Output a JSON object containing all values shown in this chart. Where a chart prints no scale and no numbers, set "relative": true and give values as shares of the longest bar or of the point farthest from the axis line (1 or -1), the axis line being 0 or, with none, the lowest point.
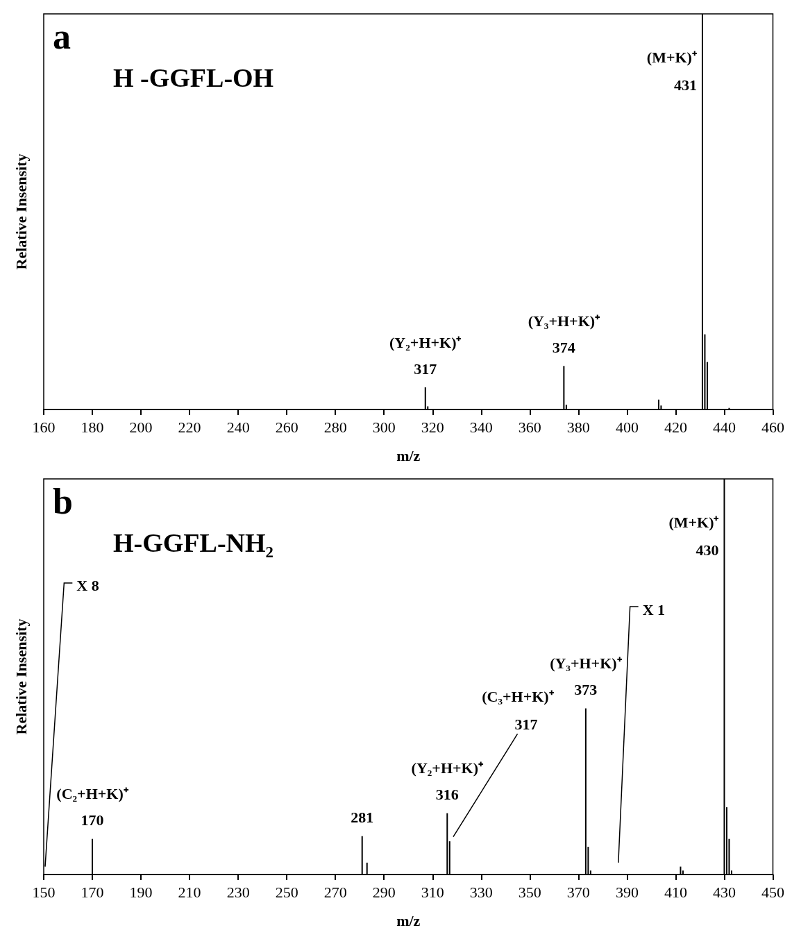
{
  "chart_data": [
    {
      "type": "bar",
      "title": "H -GGFL-OH",
      "xlabel": "m/z",
      "ylabel": "Relative Insensity",
      "relative": true,
      "tick_labels": "x",
      "grid": false,
      "color": "#000000",
      "xlim": [
        160,
        460
      ],
      "xticks": [
        160,
        180,
        200,
        220,
        240,
        260,
        280,
        300,
        320,
        340,
        360,
        380,
        400,
        420,
        440,
        460
      ],
      "x": [
        317,
        318,
        374,
        375,
        413,
        414,
        431,
        432,
        433,
        442
      ],
      "values": [
        0.056,
        0.008,
        0.11,
        0.012,
        0.025,
        0.01,
        1,
        0.19,
        0.12,
        0.004
      ],
      "annotations": [
        "a",
        {
          "text": "(M+K)⁺",
          "x": 431,
          "y": 0.89
        },
        {
          "text": "431",
          "x": 431,
          "y": 0.82
        },
        {
          "text": "(Y₂+H+K)⁺",
          "x": 317,
          "y": 0.056
        },
        {
          "text": "317",
          "x": 317,
          "y": 0.056
        },
        {
          "text": "(Y₃+H+K)⁺",
          "x": 374,
          "y": 0.11
        },
        {
          "text": "374",
          "x": 374,
          "y": 0.11
        }
      ]
    },
    {
      "type": "bar",
      "title": "H-GGFL-NH₂",
      "xlabel": "m/z",
      "ylabel": "Relative Insensity",
      "relative": true,
      "tick_labels": "x",
      "grid": false,
      "color": "#000000",
      "xlim": [
        150,
        450
      ],
      "xticks": [
        150,
        170,
        190,
        210,
        230,
        250,
        270,
        290,
        310,
        330,
        350,
        370,
        390,
        410,
        430,
        450
      ],
      "x": [
        170,
        281,
        283,
        316,
        317,
        373,
        374,
        375,
        412,
        413,
        430,
        431,
        432,
        433
      ],
      "values": [
        0.09,
        0.097,
        0.03,
        0.155,
        0.084,
        0.42,
        0.07,
        0.01,
        0.02,
        0.01,
        1,
        0.17,
        0.09,
        0.01
      ],
      "annotations": [
        "b",
        "X 8",
        "X 1",
        "(C₃+H+K)⁺",
        "317",
        {
          "text": "(M+K)⁺",
          "x": 430,
          "y": 0.89
        },
        {
          "text": "430",
          "x": 430,
          "y": 0.82
        },
        {
          "text": "(Y₃+H+K)⁺",
          "x": 373,
          "y": 0.42
        },
        {
          "text": "373",
          "x": 373,
          "y": 0.42
        },
        {
          "text": "(Y₂+H+K)⁺",
          "x": 316,
          "y": 0.155
        },
        {
          "text": "316",
          "x": 316,
          "y": 0.155
        },
        {
          "text": "281",
          "x": 281,
          "y": 0.097
        },
        {
          "text": "(C₂+H+K)⁺",
          "x": 170,
          "y": 0.09
        },
        {
          "text": "170",
          "x": 170,
          "y": 0.09
        }
      ]
    }
  ]
}
